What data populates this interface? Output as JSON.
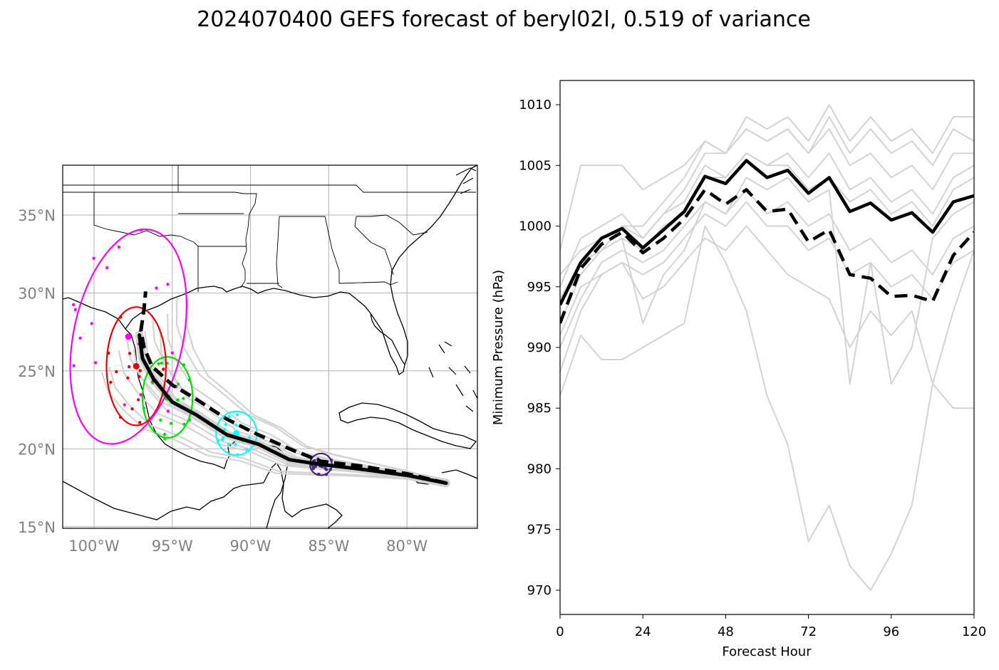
{
  "figure": {
    "title": "2024070400 GEFS forecast of beryl02l, 0.519 of variance"
  },
  "chart_data": [
    {
      "type": "map",
      "name": "track-map",
      "lon_range": [
        -102,
        -75.5
      ],
      "lat_range": [
        14.9,
        38.2
      ],
      "grid": true,
      "x_ticks": [
        {
          "value": -100,
          "label": "100°W"
        },
        {
          "value": -95,
          "label": "95°W"
        },
        {
          "value": -90,
          "label": "90°W"
        },
        {
          "value": -85,
          "label": "85°W"
        },
        {
          "value": -80,
          "label": "80°W"
        }
      ],
      "y_ticks": [
        {
          "value": 15,
          "label": "15°N"
        },
        {
          "value": 20,
          "label": "20°N"
        },
        {
          "value": 25,
          "label": "25°N"
        },
        {
          "value": 30,
          "label": "30°N"
        },
        {
          "value": 35,
          "label": "35°N"
        }
      ],
      "mean_track": [
        [
          -77.5,
          17.8
        ],
        [
          -80,
          18.3
        ],
        [
          -83,
          18.7
        ],
        [
          -85.5,
          19.0
        ],
        [
          -87.5,
          19.3
        ],
        [
          -89.5,
          20.3
        ],
        [
          -91.5,
          20.9
        ],
        [
          -93.5,
          22.2
        ],
        [
          -95.0,
          23.0
        ],
        [
          -96.2,
          24.5
        ],
        [
          -96.9,
          25.8
        ],
        [
          -97.1,
          27.3
        ]
      ],
      "control_track": [
        [
          -77.5,
          17.8
        ],
        [
          -80,
          18.4
        ],
        [
          -83,
          18.9
        ],
        [
          -85.5,
          19.2
        ],
        [
          -87.5,
          20.0
        ],
        [
          -89.5,
          20.9
        ],
        [
          -91.5,
          21.9
        ],
        [
          -93.5,
          23.2
        ],
        [
          -95.0,
          24.1
        ],
        [
          -96.3,
          25.3
        ],
        [
          -96.8,
          26.5
        ],
        [
          -97.0,
          27.6
        ],
        [
          -96.8,
          29.0
        ],
        [
          -96.7,
          30.1
        ]
      ],
      "ellipses": [
        {
          "color": "#4b2183",
          "center": [
            -85.5,
            19.0
          ],
          "rx": 0.7,
          "ry": 0.7,
          "angle": 0
        },
        {
          "color": "#00ffff",
          "center": [
            -90.9,
            21.0
          ],
          "rx": 1.3,
          "ry": 1.4,
          "angle": 0
        },
        {
          "color": "#00e000",
          "center": [
            -95.3,
            23.3
          ],
          "rx": 1.6,
          "ry": 2.6,
          "angle": 0
        },
        {
          "color": "#ee0000",
          "center": [
            -97.3,
            25.3
          ],
          "rx": 1.9,
          "ry": 3.8,
          "angle": 0
        },
        {
          "color": "#ff00ff",
          "center": [
            -97.8,
            27.2
          ],
          "rx": 3.5,
          "ry": 7.0,
          "angle": 12
        }
      ]
    },
    {
      "type": "line",
      "name": "pressure-chart",
      "xlabel": "Forecast Hour",
      "ylabel": "Minimum Pressure (hPa)",
      "xlim": [
        0,
        120
      ],
      "ylim": [
        968,
        1012
      ],
      "x_ticks": [
        0,
        24,
        48,
        72,
        96,
        120
      ],
      "y_ticks": [
        970,
        975,
        980,
        985,
        990,
        995,
        1000,
        1005,
        1010
      ],
      "x": [
        0,
        6,
        12,
        18,
        24,
        30,
        36,
        42,
        48,
        54,
        60,
        66,
        72,
        78,
        84,
        90,
        96,
        102,
        108,
        114,
        120
      ],
      "series": [
        {
          "style": "solid-mean",
          "values": [
            993.5,
            997,
            999,
            999.8,
            998.2,
            999.7,
            1001.2,
            1004.1,
            1003.5,
            1005.4,
            1004,
            1004.6,
            1002.7,
            1004,
            1001.2,
            1001.9,
            1000.5,
            1001.1,
            999.5,
            1002,
            1002.5
          ]
        },
        {
          "style": "dashed",
          "values": [
            992,
            996.5,
            998.5,
            999.5,
            997.8,
            999,
            1000.6,
            1003,
            1001.8,
            1003,
            1001.2,
            1001.4,
            998.7,
            999.7,
            996,
            995.7,
            994.2,
            994.3,
            993.8,
            997.6,
            999.5
          ]
        }
      ],
      "members": [
        [
          994,
          997,
          998,
          999,
          998,
          1000,
          1001,
          1004,
          1004,
          1006,
          1005,
          1005,
          1003,
          1004,
          1002,
          1003,
          1001,
          1002,
          1000,
          1003,
          1004
        ],
        [
          992,
          996,
          998,
          1000,
          999,
          1001,
          1003,
          1006,
          1006,
          1008,
          1007,
          1008,
          1006,
          1008,
          1005,
          1006,
          1004,
          1005,
          1003,
          1006,
          1006
        ],
        [
          996,
          998,
          999,
          1000,
          1000,
          1002,
          1004,
          1007,
          1006,
          1009,
          1008,
          1009,
          1007,
          1010,
          1007,
          1009,
          1007,
          1008,
          1006,
          1009,
          1009
        ],
        [
          990,
          994,
          997,
          998,
          997,
          998,
          1000,
          1002,
          1001,
          1003,
          1001,
          1002,
          1000,
          1001,
          998,
          999,
          997,
          998,
          996,
          999,
          1000
        ],
        [
          988,
          993,
          996,
          997,
          996,
          997,
          999,
          1001,
          1000,
          1002,
          1000,
          1000,
          998,
          999,
          996,
          997,
          995,
          996,
          994,
          997,
          998
        ],
        [
          986,
          991,
          989,
          989,
          990,
          991,
          992,
          1000,
          997,
          993,
          986,
          982,
          974,
          977,
          972,
          970,
          973,
          977,
          987,
          985,
          985
        ],
        [
          998,
          1005,
          1005,
          1005,
          1003,
          1004,
          1005,
          1007,
          1006,
          1008,
          1007,
          1008,
          1006,
          1009,
          1006,
          1008,
          1006,
          1007,
          1005,
          1008,
          1007
        ],
        [
          994,
          996,
          998,
          999,
          992,
          996,
          998,
          1002,
          1001,
          1004,
          1003,
          1004,
          1002,
          1003,
          987,
          997,
          987,
          990,
          999,
          1001,
          1002
        ],
        [
          991,
          995,
          996,
          997,
          994,
          995,
          997,
          999,
          998,
          1000,
          998,
          996,
          995,
          994,
          990,
          993,
          991,
          993,
          987,
          993,
          998
        ],
        [
          995,
          999,
          1000,
          1001,
          999,
          1001,
          1002,
          1005,
          1004,
          1006,
          1005,
          1006,
          1004,
          1006,
          1003,
          1004,
          1002,
          1003,
          1001,
          1004,
          1005
        ]
      ]
    }
  ]
}
